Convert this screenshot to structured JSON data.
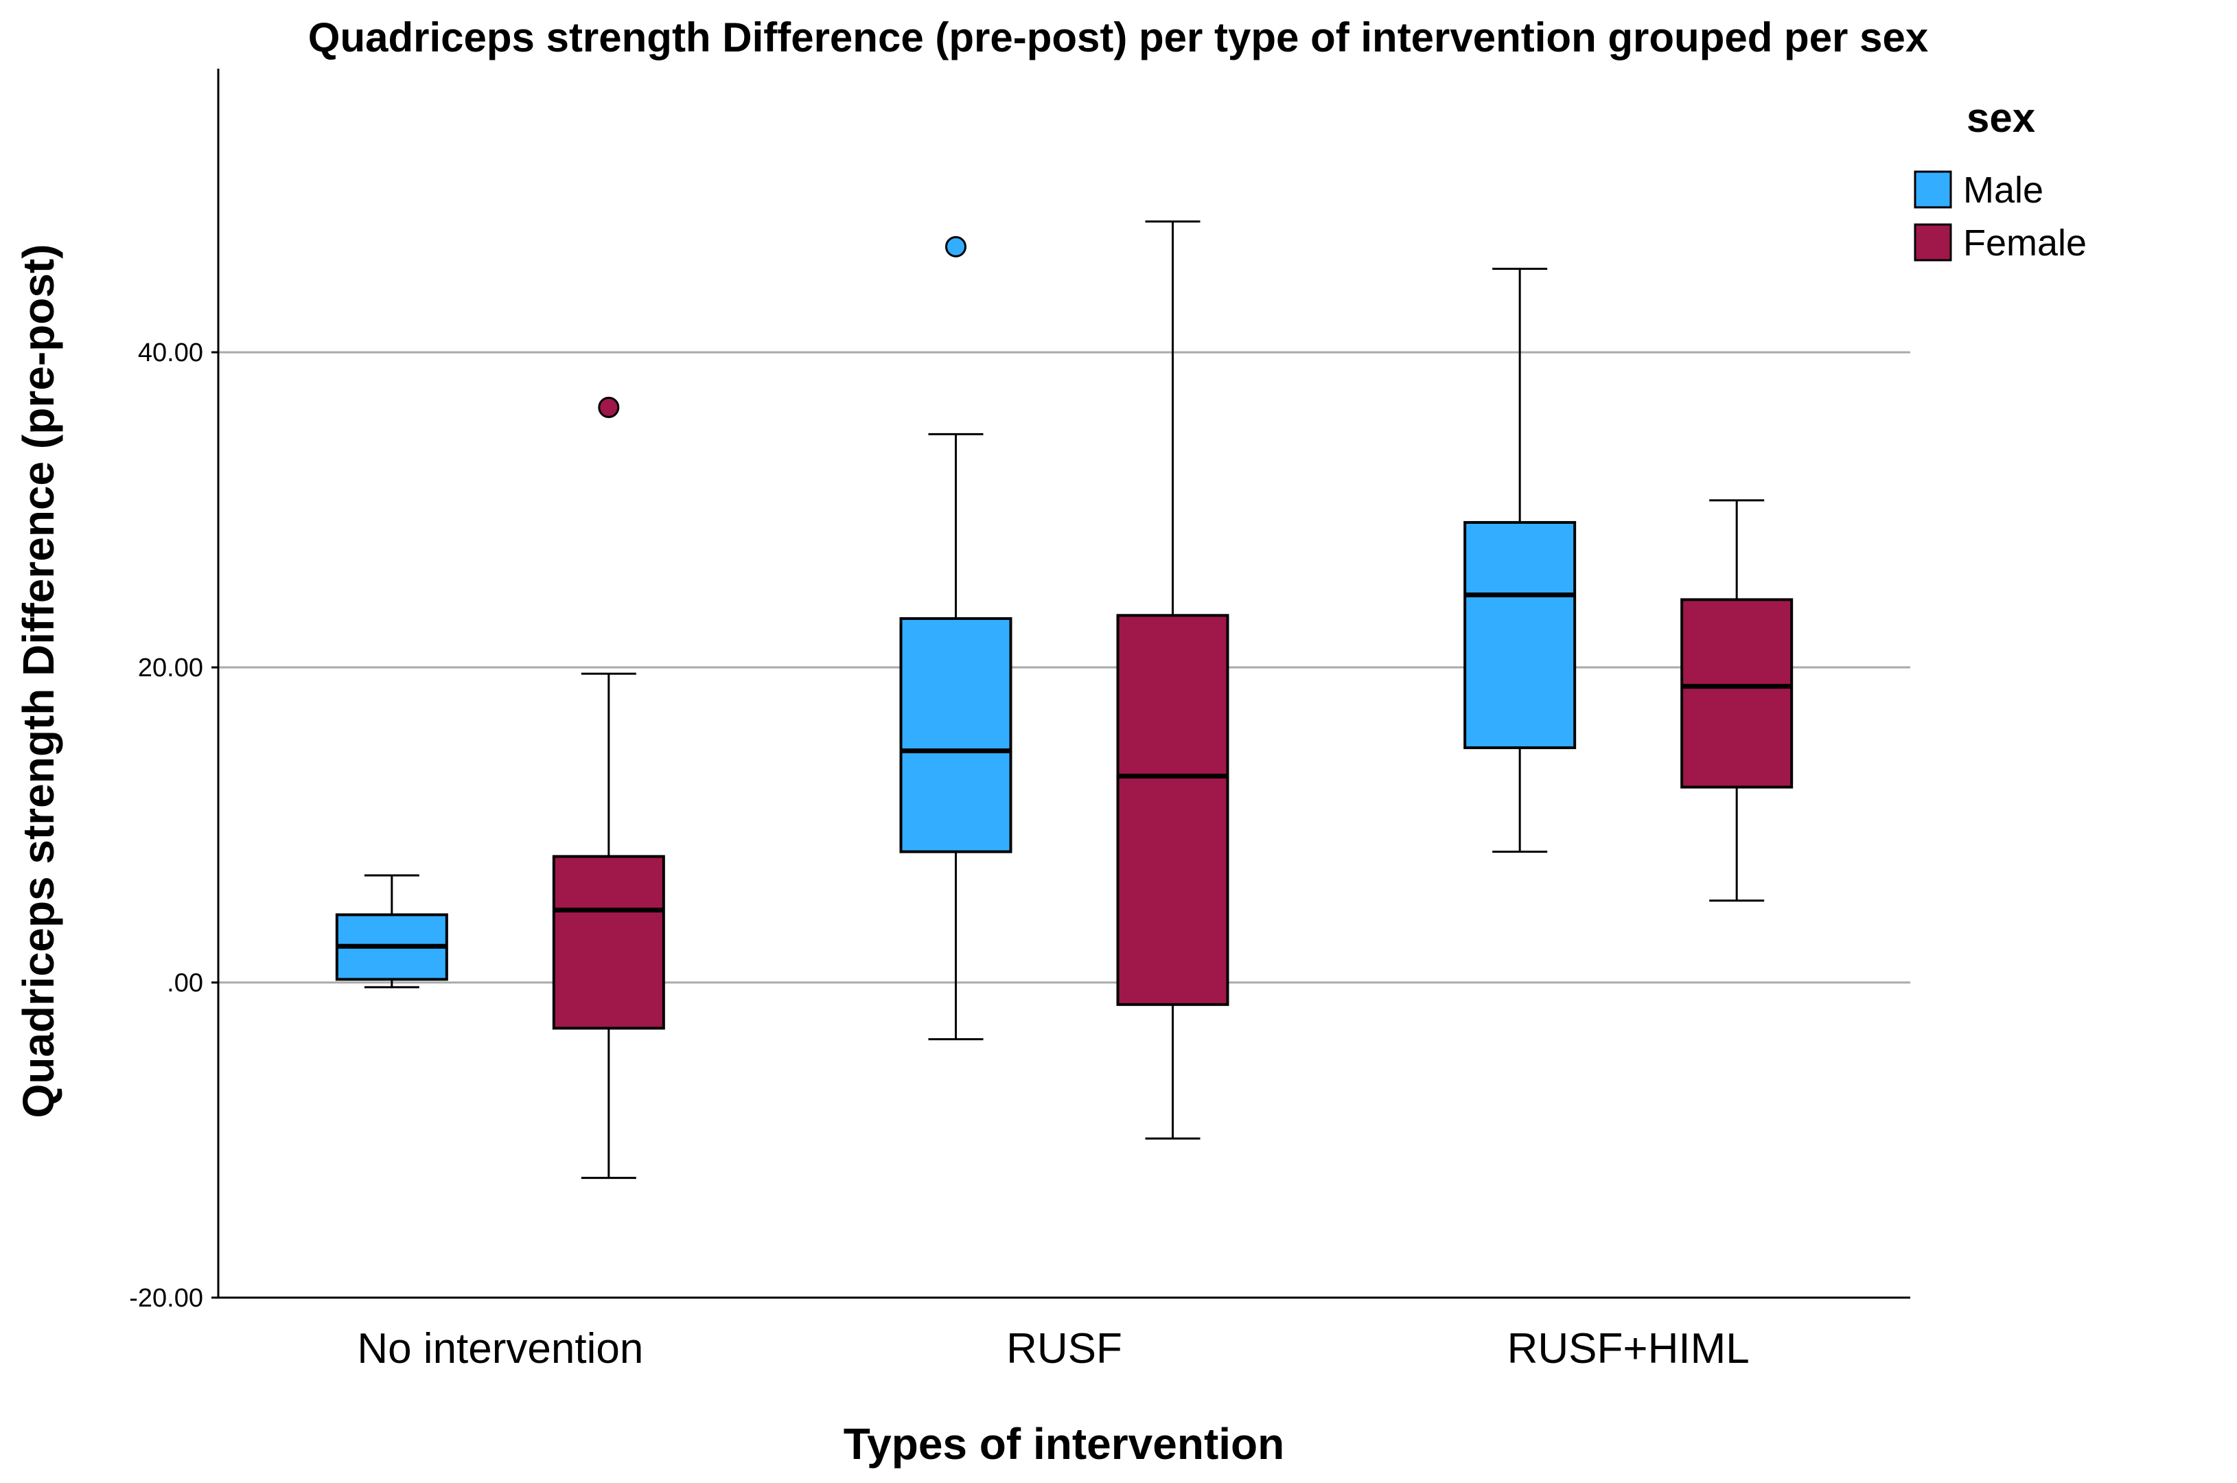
{
  "chart_data": {
    "type": "boxplot",
    "title": "Quadriceps strength Difference (pre-post) per type of intervention grouped per sex",
    "xlabel": "Types of intervention",
    "ylabel": "Quadriceps strength Difference (pre-post)",
    "ylim": [
      -20,
      58
    ],
    "yticks": [
      -20,
      0,
      20,
      40
    ],
    "ytick_labels": [
      "-20.00",
      ".00",
      "20.00",
      "40.00"
    ],
    "grid": true,
    "legend": {
      "title": "sex",
      "position": "top-right"
    },
    "categories": [
      "No intervention",
      "RUSF",
      "RUSF+HIML"
    ],
    "series": [
      {
        "name": "Male",
        "color": "#33adff",
        "boxes": [
          {
            "min": -0.3,
            "q1": 0.2,
            "median": 2.3,
            "q3": 4.3,
            "max": 6.8,
            "outliers": []
          },
          {
            "min": -3.6,
            "q1": 8.3,
            "median": 14.7,
            "q3": 23.1,
            "max": 34.8,
            "outliers": [
              46.7
            ]
          },
          {
            "min": 8.3,
            "q1": 14.9,
            "median": 24.6,
            "q3": 29.2,
            "max": 45.3,
            "outliers": []
          }
        ]
      },
      {
        "name": "Female",
        "color": "#a0174a",
        "boxes": [
          {
            "min": -12.4,
            "q1": -2.9,
            "median": 4.6,
            "q3": 8.0,
            "max": 19.6,
            "outliers": [
              36.5
            ]
          },
          {
            "min": -9.9,
            "q1": -1.4,
            "median": 13.1,
            "q3": 23.3,
            "max": 48.3,
            "outliers": []
          },
          {
            "min": 5.2,
            "q1": 12.4,
            "median": 18.8,
            "q3": 24.3,
            "max": 30.6,
            "outliers": []
          }
        ]
      }
    ]
  }
}
